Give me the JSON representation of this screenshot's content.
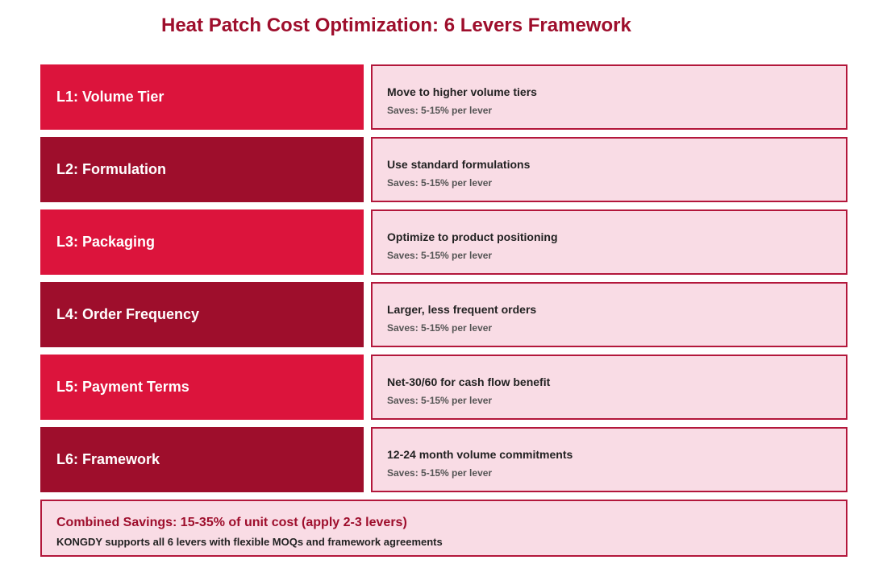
{
  "title": "Heat Patch Cost Optimization: 6 Levers Framework",
  "levers": [
    {
      "label": "L1: Volume Tier",
      "description": "Move to higher volume tiers",
      "saves": "Saves: 5-15% per lever"
    },
    {
      "label": "L2: Formulation",
      "description": "Use standard formulations",
      "saves": "Saves: 5-15% per lever"
    },
    {
      "label": "L3: Packaging",
      "description": "Optimize to product positioning",
      "saves": "Saves: 5-15% per lever"
    },
    {
      "label": "L4: Order Frequency",
      "description": "Larger, less frequent orders",
      "saves": "Saves: 5-15% per lever"
    },
    {
      "label": "L5: Payment Terms",
      "description": "Net-30/60 for cash flow benefit",
      "saves": "Saves: 5-15% per lever"
    },
    {
      "label": "L6: Framework",
      "description": "12-24 month volume commitments",
      "saves": "Saves: 5-15% per lever"
    }
  ],
  "summary": {
    "headline": "Combined Savings: 15-35% of unit cost (apply 2-3 levers)",
    "subtext": "KONGDY supports all 6 levers with flexible MOQs and framework agreements"
  },
  "colors": {
    "accent_bright": "#dc143c",
    "accent_dark": "#9e0e2c",
    "panel_background": "#f9dce5",
    "panel_border": "#b3173b"
  }
}
